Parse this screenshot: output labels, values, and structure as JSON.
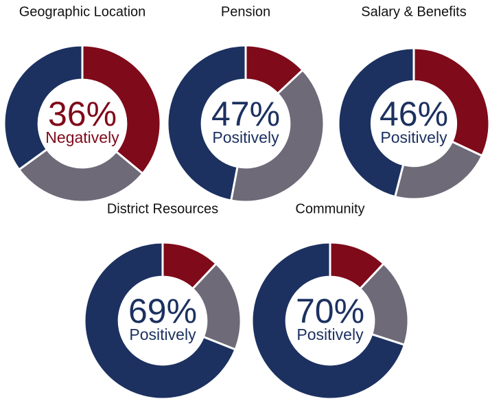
{
  "chart_data": [
    {
      "type": "donut",
      "title": "Geographic Location",
      "values": [
        36,
        29,
        35
      ],
      "colors": [
        "#7f0a1a",
        "#6e6a78",
        "#1c3160"
      ],
      "value_labels": [
        "36%",
        null,
        null
      ],
      "center_text": "Negatively",
      "center_color": "#7f0a1a"
    },
    {
      "type": "donut",
      "title": "Pension",
      "values": [
        13,
        40,
        47
      ],
      "colors": [
        "#7f0a1a",
        "#6e6a78",
        "#1c3160"
      ],
      "value_labels": [
        null,
        null,
        "47%"
      ],
      "center_text": "Positively",
      "center_color": "#1c3160"
    },
    {
      "type": "donut",
      "title": "Salary & Benefits",
      "values": [
        32,
        22,
        46
      ],
      "colors": [
        "#7f0a1a",
        "#6e6a78",
        "#1c3160"
      ],
      "value_labels": [
        null,
        null,
        "46%"
      ],
      "center_text": "Positively",
      "center_color": "#1c3160"
    },
    {
      "type": "donut",
      "title": "District Resources",
      "values": [
        12,
        19,
        69
      ],
      "colors": [
        "#7f0a1a",
        "#6e6a78",
        "#1c3160"
      ],
      "value_labels": [
        null,
        null,
        "69%"
      ],
      "center_text": "Positively",
      "center_color": "#1c3160"
    },
    {
      "type": "donut",
      "title": "Community",
      "values": [
        12,
        18,
        70
      ],
      "colors": [
        "#7f0a1a",
        "#6e6a78",
        "#1c3160"
      ],
      "value_labels": [
        null,
        null,
        "70%"
      ],
      "center_text": "Positively",
      "center_color": "#1c3160"
    }
  ]
}
